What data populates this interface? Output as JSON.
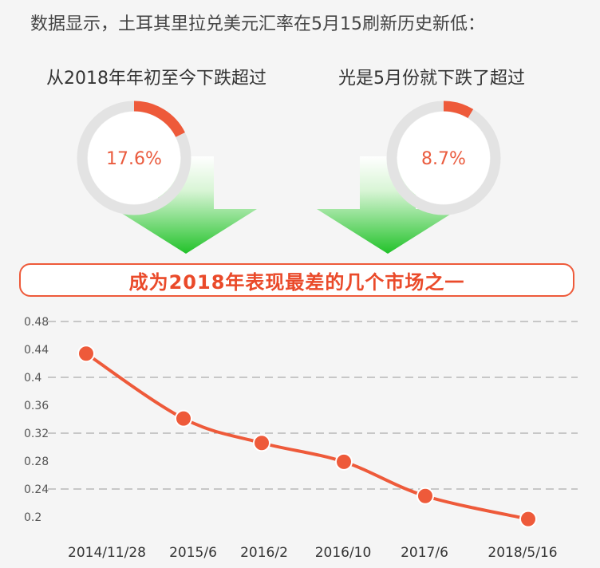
{
  "headline": "数据显示，土耳其里拉兑美元汇率在5月15刷新历史新低：",
  "stats": [
    {
      "label": "从2018年年初至今下跌超过",
      "value_text": "17.6%",
      "fraction": 0.176
    },
    {
      "label": "光是5月份就下跌了超过",
      "value_text": "8.7%",
      "fraction": 0.087
    }
  ],
  "banner": "成为2018年表现最差的几个市场之一",
  "colors": {
    "accent": "#ee5a3a",
    "ring_track": "#e3e3e3",
    "arrow_top": "#ffffff",
    "arrow_bottom": "#22c22a",
    "grid": "#999999"
  },
  "chart_data": {
    "type": "line",
    "title": "",
    "xlabel": "",
    "ylabel": "",
    "ylim": [
      0.2,
      0.48
    ],
    "y_ticks": [
      "0.48",
      "0.44",
      "0.4",
      "0.36",
      "0.32",
      "0.28",
      "0.24",
      "0.2"
    ],
    "dashed_gridlines_at": [
      0.48,
      0.4,
      0.32,
      0.24
    ],
    "categories": [
      "2014/11/28",
      "2015/6",
      "2016/2",
      "2016/10",
      "2017/6",
      "2018/5/16"
    ],
    "series": [
      {
        "values": [
          0.434,
          0.341,
          0.306,
          0.279,
          0.23,
          0.197
        ]
      }
    ]
  }
}
